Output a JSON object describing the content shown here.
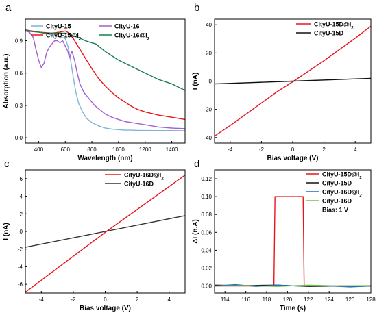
{
  "figure": {
    "colors": {
      "axis": "#000000",
      "red": "#e8141b",
      "black": "#111111",
      "gray": "#333333",
      "lightblue": "#7fb4d8",
      "purple": "#a45fd1",
      "green": "#1a7d4e",
      "blue": "#1f6fb2",
      "lightgreen": "#6cc04a"
    }
  },
  "chart_data": [
    {
      "panel": "a",
      "type": "line",
      "xlabel": "Wavelength (nm)",
      "ylabel": "Absorption (a.u.)",
      "xlim": [
        300,
        1500
      ],
      "ylim": [
        -0.05,
        1.1
      ],
      "xticks": [
        "400",
        "600",
        "800",
        "1000",
        "1200",
        "1400"
      ],
      "xtick_values": [
        400,
        600,
        800,
        1000,
        1200,
        1400
      ],
      "yticks": [
        "0.0",
        "0.3",
        "0.6",
        "0.9"
      ],
      "ytick_values": [
        0.0,
        0.3,
        0.6,
        0.9
      ],
      "legend": {
        "placement": "top",
        "columns": 2
      },
      "series": [
        {
          "name": "CityU-15",
          "color_key": "lightblue",
          "points": [
            [
              300,
              0.99
            ],
            [
              350,
              0.99
            ],
            [
              400,
              0.98
            ],
            [
              450,
              0.97
            ],
            [
              500,
              0.95
            ],
            [
              550,
              0.94
            ],
            [
              600,
              0.92
            ],
            [
              620,
              0.85
            ],
            [
              640,
              0.72
            ],
            [
              660,
              0.56
            ],
            [
              680,
              0.42
            ],
            [
              700,
              0.32
            ],
            [
              730,
              0.24
            ],
            [
              760,
              0.18
            ],
            [
              800,
              0.14
            ],
            [
              850,
              0.11
            ],
            [
              900,
              0.09
            ],
            [
              950,
              0.08
            ],
            [
              1000,
              0.075
            ],
            [
              1050,
              0.07
            ],
            [
              1100,
              0.07
            ],
            [
              1150,
              0.068
            ],
            [
              1200,
              0.067
            ],
            [
              1300,
              0.066
            ],
            [
              1400,
              0.066
            ],
            [
              1500,
              0.065
            ]
          ]
        },
        {
          "name": "CityU-16",
          "color_key": "purple",
          "points": [
            [
              300,
              0.99
            ],
            [
              330,
              0.98
            ],
            [
              360,
              0.93
            ],
            [
              380,
              0.82
            ],
            [
              400,
              0.72
            ],
            [
              420,
              0.65
            ],
            [
              440,
              0.69
            ],
            [
              460,
              0.79
            ],
            [
              480,
              0.84
            ],
            [
              500,
              0.87
            ],
            [
              520,
              0.9
            ],
            [
              540,
              0.9
            ],
            [
              560,
              0.88
            ],
            [
              580,
              0.9
            ],
            [
              600,
              0.85
            ],
            [
              620,
              0.8
            ],
            [
              630,
              0.74
            ],
            [
              650,
              0.8
            ],
            [
              670,
              0.72
            ],
            [
              690,
              0.6
            ],
            [
              710,
              0.5
            ],
            [
              740,
              0.42
            ],
            [
              780,
              0.36
            ],
            [
              820,
              0.3
            ],
            [
              860,
              0.26
            ],
            [
              900,
              0.22
            ],
            [
              950,
              0.19
            ],
            [
              1000,
              0.17
            ],
            [
              1050,
              0.15
            ],
            [
              1100,
              0.14
            ],
            [
              1200,
              0.12
            ],
            [
              1300,
              0.1
            ],
            [
              1400,
              0.09
            ],
            [
              1500,
              0.085
            ]
          ]
        },
        {
          "name": "CityU-15@I2",
          "color_key": "red",
          "points": [
            [
              300,
              0.99
            ],
            [
              400,
              0.98
            ],
            [
              500,
              0.97
            ],
            [
              560,
              0.98
            ],
            [
              600,
              0.99
            ],
            [
              630,
              0.97
            ],
            [
              660,
              0.92
            ],
            [
              700,
              0.84
            ],
            [
              750,
              0.74
            ],
            [
              800,
              0.64
            ],
            [
              850,
              0.55
            ],
            [
              900,
              0.48
            ],
            [
              950,
              0.42
            ],
            [
              1000,
              0.37
            ],
            [
              1050,
              0.33
            ],
            [
              1100,
              0.29
            ],
            [
              1150,
              0.26
            ],
            [
              1200,
              0.24
            ],
            [
              1300,
              0.21
            ],
            [
              1400,
              0.19
            ],
            [
              1500,
              0.17
            ]
          ]
        },
        {
          "name": "CityU-16@I2",
          "color_key": "green",
          "points": [
            [
              300,
              1.0
            ],
            [
              350,
              0.99
            ],
            [
              400,
              0.98
            ],
            [
              450,
              0.97
            ],
            [
              500,
              0.97
            ],
            [
              550,
              0.97
            ],
            [
              600,
              0.97
            ],
            [
              650,
              0.95
            ],
            [
              700,
              0.93
            ],
            [
              750,
              0.9
            ],
            [
              800,
              0.88
            ],
            [
              830,
              0.87
            ],
            [
              850,
              0.85
            ],
            [
              900,
              0.8
            ],
            [
              950,
              0.76
            ],
            [
              1000,
              0.72
            ],
            [
              1050,
              0.69
            ],
            [
              1100,
              0.66
            ],
            [
              1150,
              0.63
            ],
            [
              1200,
              0.6
            ],
            [
              1250,
              0.57
            ],
            [
              1300,
              0.54
            ],
            [
              1350,
              0.52
            ],
            [
              1400,
              0.5
            ],
            [
              1450,
              0.47
            ],
            [
              1500,
              0.44
            ]
          ]
        }
      ]
    },
    {
      "panel": "b",
      "type": "line",
      "xlabel": "Bias voltage (V)",
      "ylabel": "I (nA)",
      "xlim": [
        -5,
        5
      ],
      "ylim": [
        -44,
        44
      ],
      "xticks": [
        "-4",
        "-2",
        "0",
        "2",
        "4"
      ],
      "xtick_values": [
        -4,
        -2,
        0,
        2,
        4
      ],
      "yticks": [
        "-40",
        "-20",
        "0",
        "20",
        "40"
      ],
      "ytick_values": [
        -40,
        -20,
        0,
        20,
        40
      ],
      "legend": {
        "placement": "top-right",
        "columns": 1
      },
      "series": [
        {
          "name": "CityU-15D@I2",
          "color_key": "red",
          "points": [
            [
              -5,
              -39
            ],
            [
              -4,
              -31.5
            ],
            [
              -3,
              -23.5
            ],
            [
              -2,
              -15.5
            ],
            [
              -1,
              -7.5
            ],
            [
              0,
              -0.5
            ],
            [
              1,
              7
            ],
            [
              2,
              14.5
            ],
            [
              3,
              22.5
            ],
            [
              4,
              30.5
            ],
            [
              5,
              39
            ]
          ]
        },
        {
          "name": "CityU-15D",
          "color_key": "black",
          "points": [
            [
              -5,
              -2
            ],
            [
              0,
              0
            ],
            [
              5,
              2
            ]
          ]
        }
      ]
    },
    {
      "panel": "c",
      "type": "line",
      "xlabel": "Bias voltage (V)",
      "ylabel": "I (nA)",
      "xlim": [
        -5,
        5
      ],
      "ylim": [
        -7,
        7
      ],
      "xticks": [
        "-4",
        "-2",
        "0",
        "2",
        "4"
      ],
      "xtick_values": [
        -4,
        -2,
        0,
        2,
        4
      ],
      "yticks": [
        "-6",
        "-4",
        "-2",
        "0",
        "2",
        "4",
        "6"
      ],
      "ytick_values": [
        -6,
        -4,
        -2,
        0,
        2,
        4,
        6
      ],
      "legend": {
        "placement": "top-left",
        "columns": 1
      },
      "series": [
        {
          "name": "CityU-16D@I2",
          "color_key": "red",
          "points": [
            [
              -5,
              -6.9
            ],
            [
              0,
              -0.1
            ],
            [
              5,
              6.4
            ]
          ]
        },
        {
          "name": "CityU-16D",
          "color_key": "gray",
          "points": [
            [
              -5,
              -1.8
            ],
            [
              0,
              0
            ],
            [
              5,
              1.8
            ]
          ]
        }
      ]
    },
    {
      "panel": "d",
      "type": "line",
      "xlabel": "Time (s)",
      "ylabel": "ΔI (n.A)",
      "xlim": [
        113,
        128
      ],
      "ylim": [
        -0.008,
        0.13
      ],
      "xticks": [
        "114",
        "116",
        "118",
        "120",
        "122",
        "124",
        "126",
        "128"
      ],
      "xtick_values": [
        114,
        116,
        118,
        120,
        122,
        124,
        126,
        128
      ],
      "yticks": [
        "0.00",
        "0.02",
        "0.04",
        "0.06",
        "0.08",
        "0.10",
        "0.12"
      ],
      "ytick_values": [
        0.0,
        0.02,
        0.04,
        0.06,
        0.08,
        0.1,
        0.12
      ],
      "legend": {
        "placement": "top-right",
        "columns": 1
      },
      "annotation": "Bias: 1 V",
      "series": [
        {
          "name": "CityU-15D@I2",
          "color_key": "red",
          "points": [
            [
              113,
              0.0
            ],
            [
              118.7,
              0.0
            ],
            [
              118.8,
              0.1
            ],
            [
              121.5,
              0.1
            ],
            [
              121.6,
              0.0
            ],
            [
              128,
              0.0
            ]
          ]
        },
        {
          "name": "CityU-15D",
          "color_key": "black",
          "points": [
            [
              113,
              0.001
            ],
            [
              116,
              0.0005
            ],
            [
              119,
              0.001
            ],
            [
              122,
              -0.0005
            ],
            [
              125,
              0.0
            ],
            [
              128,
              0.0
            ]
          ]
        },
        {
          "name": "CityU-16D@I2",
          "color_key": "blue",
          "points": [
            [
              113,
              0.0
            ],
            [
              115,
              0.0015
            ],
            [
              117,
              -0.0005
            ],
            [
              119,
              0.001
            ],
            [
              121,
              0.0
            ],
            [
              123,
              0.0005
            ],
            [
              126,
              -0.001
            ],
            [
              128,
              0.0
            ]
          ]
        },
        {
          "name": "CityU-16D",
          "color_key": "lightgreen",
          "points": [
            [
              113,
              0.0
            ],
            [
              116,
              0.0005
            ],
            [
              119,
              -0.0005
            ],
            [
              122,
              0.001
            ],
            [
              125,
              0.0
            ],
            [
              128,
              0.0005
            ]
          ]
        }
      ]
    }
  ]
}
